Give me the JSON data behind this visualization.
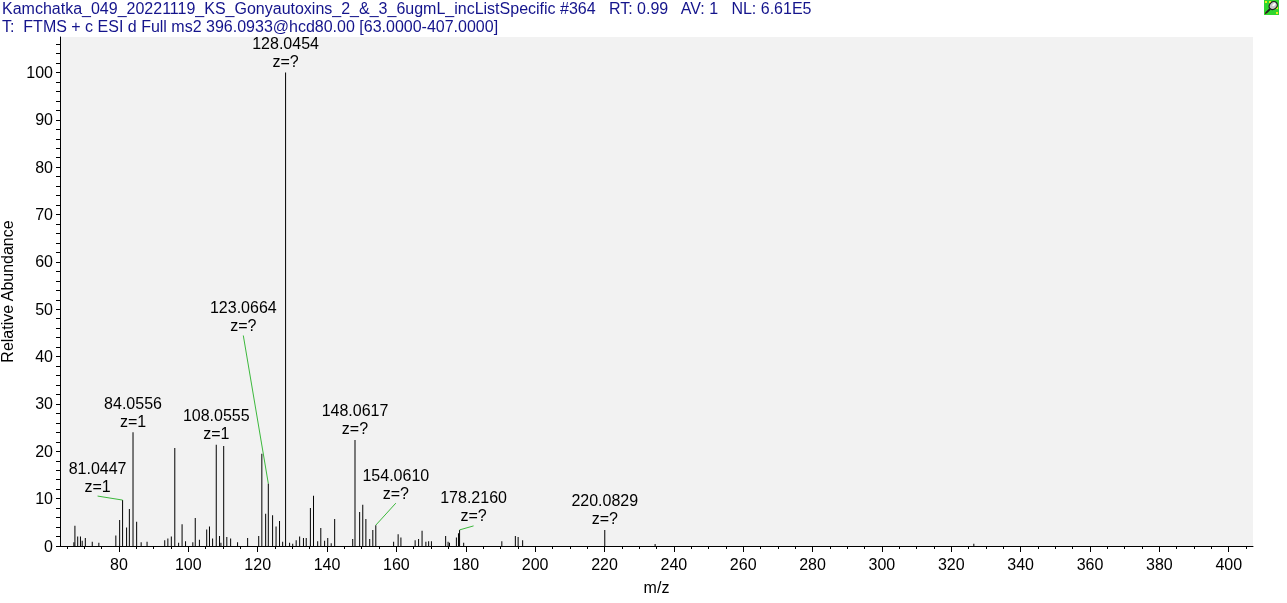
{
  "chart_data": {
    "type": "bar",
    "title": "Kamchatka_049_20221119_KS_Gonyautoxins_2_&_3_6ugmL_incListSpecific #364   RT: 0.99   AV: 1   NL: 6.61E5",
    "subtitle": "T:  FTMS + c ESI d Full ms2 396.0933@hcd80.00 [63.0000-407.0000]",
    "xlabel": "m/z",
    "ylabel": "Relative Abundance",
    "color": "#000000",
    "x": [
      67.0,
      67.3,
      68.1,
      68.9,
      69.4,
      70.3,
      72.3,
      74.2,
      79.1,
      80.2,
      81.0447,
      82.2,
      83.0,
      84.0556,
      85.1,
      86.4,
      88.1,
      93.2,
      94.1,
      95.1,
      96.1,
      97.2,
      98.2,
      99.2,
      101.3,
      102.0,
      103.2,
      105.3,
      106.1,
      107.0,
      108.0555,
      109.0,
      109.4,
      110.2,
      111.1,
      112.2,
      114.2,
      117.1,
      120.3,
      121.2,
      122.3,
      123.0664,
      124.3,
      125.3,
      126.3,
      127.2,
      128.0454,
      129.2,
      130.1,
      131.1,
      132.1,
      133.2,
      134.0,
      135.2,
      136.1,
      137.3,
      138.2,
      139.3,
      140.2,
      141.2,
      142.2,
      147.4,
      148.0617,
      149.4,
      150.3,
      151.2,
      152.3,
      153.2,
      154.061,
      159.2,
      160.5,
      161.3,
      165.4,
      166.4,
      167.4,
      168.5,
      169.3,
      170.1,
      174.2,
      174.9,
      175.3,
      177.3,
      177.9,
      178.216,
      179.4,
      190.4,
      194.3,
      195.1,
      196.4,
      220.0829,
      234.6,
      326.5
    ],
    "values": [
      0.8,
      4.3,
      2.0,
      2.0,
      1.1,
      1.7,
      0.9,
      0.7,
      2.2,
      5.5,
      9.7,
      3.9,
      7.8,
      24.0,
      5.1,
      0.8,
      0.9,
      1.2,
      1.6,
      2.0,
      20.7,
      0.7,
      4.6,
      1.0,
      0.8,
      5.9,
      1.3,
      3.5,
      4.1,
      1.6,
      21.4,
      2.1,
      0.7,
      21.1,
      1.9,
      1.6,
      0.8,
      1.7,
      2.1,
      19.5,
      6.8,
      13.2,
      6.5,
      4.1,
      5.3,
      0.9,
      100,
      0.7,
      0.5,
      1.2,
      2.0,
      1.7,
      1.7,
      8.0,
      10.6,
      1.0,
      3.8,
      1.1,
      1.7,
      0.6,
      5.7,
      1.5,
      22.4,
      7.2,
      8.7,
      5.7,
      1.5,
      3.4,
      4.4,
      0.9,
      2.5,
      1.8,
      1.2,
      1.5,
      3.2,
      0.9,
      1.0,
      1.0,
      2.1,
      0.9,
      0.7,
      1.8,
      2.7,
      3.4,
      0.7,
      1.0,
      2.1,
      1.9,
      1.2,
      3.4,
      0.4,
      0.5
    ],
    "annotations": [
      {
        "text": "81.0447\nz=1",
        "x": 81.0447,
        "y": 9.7
      },
      {
        "text": "84.0556\nz=1",
        "x": 84.0556,
        "y": 24.0
      },
      {
        "text": "108.0555\nz=1",
        "x": 108.0555,
        "y": 21.4
      },
      {
        "text": "123.0664\nz=?",
        "x": 123.0664,
        "y": 13.2
      },
      {
        "text": "128.0454\nz=?",
        "x": 128.0454,
        "y": 100
      },
      {
        "text": "148.0617\nz=?",
        "x": 148.0617,
        "y": 22.4
      },
      {
        "text": "154.0610\nz=?",
        "x": 154.061,
        "y": 4.4
      },
      {
        "text": "178.2160\nz=?",
        "x": 178.216,
        "y": 3.4
      },
      {
        "text": "220.0829\nz=?",
        "x": 220.0829,
        "y": 3.4
      }
    ],
    "xlim": [
      63,
      407
    ],
    "ylim": [
      0,
      107.5
    ],
    "xticks": [
      {
        "value": 65,
        "label": null
      },
      {
        "value": 70,
        "label": null
      },
      {
        "value": 75,
        "label": null
      },
      80,
      {
        "value": 85,
        "label": null
      },
      {
        "value": 90,
        "label": null
      },
      {
        "value": 95,
        "label": null
      },
      100,
      {
        "value": 105,
        "label": null
      },
      {
        "value": 110,
        "label": null
      },
      {
        "value": 115,
        "label": null
      },
      120,
      {
        "value": 125,
        "label": null
      },
      {
        "value": 130,
        "label": null
      },
      {
        "value": 135,
        "label": null
      },
      140,
      {
        "value": 145,
        "label": null
      },
      {
        "value": 150,
        "label": null
      },
      {
        "value": 155,
        "label": null
      },
      160,
      {
        "value": 165,
        "label": null
      },
      {
        "value": 170,
        "label": null
      },
      {
        "value": 175,
        "label": null
      },
      180,
      {
        "value": 185,
        "label": null
      },
      {
        "value": 190,
        "label": null
      },
      {
        "value": 195,
        "label": null
      },
      200,
      {
        "value": 205,
        "label": null
      },
      {
        "value": 210,
        "label": null
      },
      {
        "value": 215,
        "label": null
      },
      220,
      {
        "value": 225,
        "label": null
      },
      {
        "value": 230,
        "label": null
      },
      {
        "value": 235,
        "label": null
      },
      240,
      {
        "value": 245,
        "label": null
      },
      {
        "value": 250,
        "label": null
      },
      {
        "value": 255,
        "label": null
      },
      260,
      {
        "value": 265,
        "label": null
      },
      {
        "value": 270,
        "label": null
      },
      {
        "value": 275,
        "label": null
      },
      280,
      {
        "value": 285,
        "label": null
      },
      {
        "value": 290,
        "label": null
      },
      {
        "value": 295,
        "label": null
      },
      300,
      {
        "value": 305,
        "label": null
      },
      {
        "value": 310,
        "label": null
      },
      {
        "value": 315,
        "label": null
      },
      320,
      {
        "value": 325,
        "label": null
      },
      {
        "value": 330,
        "label": null
      },
      {
        "value": 335,
        "label": null
      },
      340,
      {
        "value": 345,
        "label": null
      },
      {
        "value": 350,
        "label": null
      },
      {
        "value": 355,
        "label": null
      },
      360,
      {
        "value": 365,
        "label": null
      },
      {
        "value": 370,
        "label": null
      },
      {
        "value": 375,
        "label": null
      },
      380,
      {
        "value": 385,
        "label": null
      },
      {
        "value": 390,
        "label": null
      },
      {
        "value": 395,
        "label": null
      },
      400,
      {
        "value": 405,
        "label": null
      }
    ],
    "yticks": [
      0,
      {
        "value": 2,
        "label": null
      },
      {
        "value": 4,
        "label": null
      },
      {
        "value": 6,
        "label": null
      },
      {
        "value": 8,
        "label": null
      },
      10,
      {
        "value": 12,
        "label": null
      },
      {
        "value": 14,
        "label": null
      },
      {
        "value": 16,
        "label": null
      },
      {
        "value": 18,
        "label": null
      },
      20,
      {
        "value": 22,
        "label": null
      },
      {
        "value": 24,
        "label": null
      },
      {
        "value": 26,
        "label": null
      },
      {
        "value": 28,
        "label": null
      },
      30,
      {
        "value": 32,
        "label": null
      },
      {
        "value": 34,
        "label": null
      },
      {
        "value": 36,
        "label": null
      },
      {
        "value": 38,
        "label": null
      },
      40,
      {
        "value": 42,
        "label": null
      },
      {
        "value": 44,
        "label": null
      },
      {
        "value": 46,
        "label": null
      },
      {
        "value": 48,
        "label": null
      },
      50,
      {
        "value": 52,
        "label": null
      },
      {
        "value": 54,
        "label": null
      },
      {
        "value": 56,
        "label": null
      },
      {
        "value": 58,
        "label": null
      },
      60,
      {
        "value": 62,
        "label": null
      },
      {
        "value": 64,
        "label": null
      },
      {
        "value": 66,
        "label": null
      },
      {
        "value": 68,
        "label": null
      },
      70,
      {
        "value": 72,
        "label": null
      },
      {
        "value": 74,
        "label": null
      },
      {
        "value": 76,
        "label": null
      },
      {
        "value": 78,
        "label": null
      },
      80,
      {
        "value": 82,
        "label": null
      },
      {
        "value": 84,
        "label": null
      },
      {
        "value": 86,
        "label": null
      },
      {
        "value": 88,
        "label": null
      },
      90,
      {
        "value": 92,
        "label": null
      },
      {
        "value": 94,
        "label": null
      },
      {
        "value": 96,
        "label": null
      },
      {
        "value": 98,
        "label": null
      },
      100,
      {
        "value": 102,
        "label": null
      },
      {
        "value": 104,
        "label": null
      },
      {
        "value": 106,
        "label": null
      }
    ]
  }
}
